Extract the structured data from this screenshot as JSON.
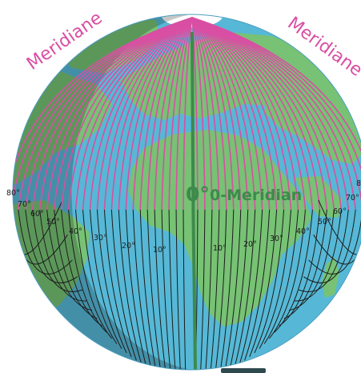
{
  "labels": {
    "meridian_left": "Meridiane",
    "meridian_right": "Meridiane",
    "prime_zero": "0°",
    "prime_name": "0-Meridian"
  },
  "degrees_west": [
    "80°",
    "70°",
    "60°",
    "50°",
    "40°",
    "30°",
    "20°",
    "10°"
  ],
  "degrees_east": [
    "10°",
    "20°",
    "30°",
    "40°",
    "50°",
    "60°",
    "70°",
    "8"
  ],
  "colors": {
    "ocean": "#56b8d6",
    "land": "#77c274",
    "meridian_north": "#d94fa3",
    "meridian_south": "#1b1b1b",
    "prime_meridian": "#3d8a4c",
    "ice": "#ffffff"
  }
}
